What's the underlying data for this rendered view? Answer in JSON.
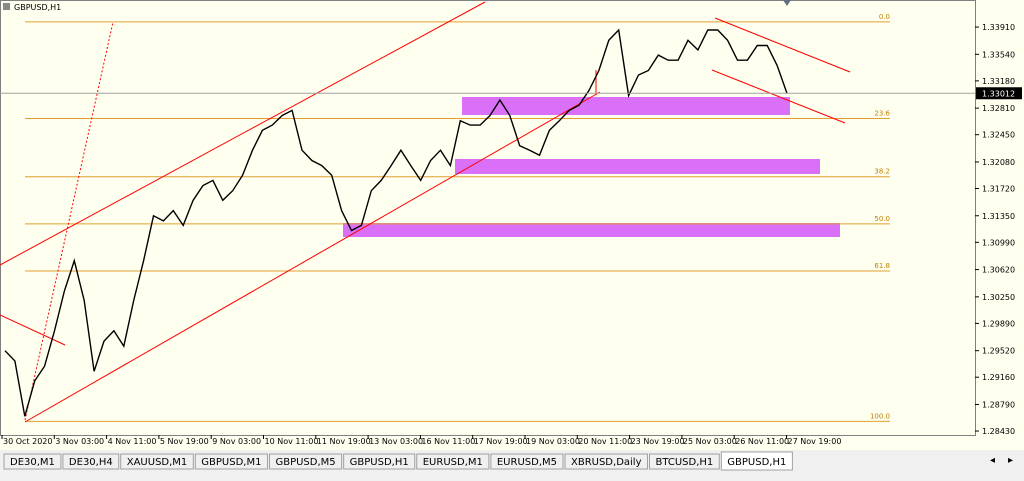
{
  "chart_data": {
    "type": "line",
    "title": "GBPUSD,H1",
    "color": "#000000",
    "values": [
      1.2952,
      1.2938,
      1.2863,
      1.2911,
      1.2931,
      1.2979,
      1.3033,
      1.3074,
      1.302,
      1.2924,
      1.2965,
      1.2979,
      1.2958,
      1.302,
      1.3074,
      1.3135,
      1.3128,
      1.3142,
      1.3122,
      1.3156,
      1.3176,
      1.3183,
      1.3156,
      1.3169,
      1.319,
      1.3224,
      1.3251,
      1.3258,
      1.3271,
      1.3278,
      1.3224,
      1.321,
      1.3203,
      1.319,
      1.3142,
      1.3115,
      1.3122,
      1.3169,
      1.3183,
      1.3203,
      1.3224,
      1.3203,
      1.3183,
      1.321,
      1.3224,
      1.3203,
      1.3264,
      1.3258,
      1.3258,
      1.3271,
      1.3292,
      1.3271,
      1.323,
      1.3224,
      1.3217,
      1.3251,
      1.3264,
      1.3278,
      1.3285,
      1.3305,
      1.3332,
      1.3373,
      1.3387,
      1.3298,
      1.3326,
      1.3332,
      1.3353,
      1.3346,
      1.3346,
      1.3373,
      1.336,
      1.3387,
      1.3387,
      1.3373,
      1.3346,
      1.3346,
      1.3366,
      1.3366,
      1.3339,
      1.3301
    ],
    "ylim": [
      1.28376,
      1.34277
    ],
    "yticks": [
      {
        "value": 1.3391,
        "label": "1.33910"
      },
      {
        "value": 1.3354,
        "label": "1.33540"
      },
      {
        "value": 1.3318,
        "label": "1.33180"
      },
      {
        "value": 1.3281,
        "label": "1.32810"
      },
      {
        "value": 1.3245,
        "label": "1.32450"
      },
      {
        "value": 1.3208,
        "label": "1.32080"
      },
      {
        "value": 1.3172,
        "label": "1.31720"
      },
      {
        "value": 1.3135,
        "label": "1.31350"
      },
      {
        "value": 1.3099,
        "label": "1.30990"
      },
      {
        "value": 1.3062,
        "label": "1.30620"
      },
      {
        "value": 1.3025,
        "label": "1.30250"
      },
      {
        "value": 1.2989,
        "label": "1.29890"
      },
      {
        "value": 1.2952,
        "label": "1.29520"
      },
      {
        "value": 1.2916,
        "label": "1.29160"
      },
      {
        "value": 1.2879,
        "label": "1.28790"
      },
      {
        "value": 1.2843,
        "label": "1.28430"
      }
    ],
    "x_labels": [
      "30 Oct 2020",
      "3 Nov 03:00",
      "4 Nov 11:00",
      "5 Nov 19:00",
      "9 Nov 03:00",
      "10 Nov 11:00",
      "11 Nov 19:00",
      "13 Nov 03:00",
      "16 Nov 11:00",
      "17 Nov 19:00",
      "19 Nov 03:00",
      "20 Nov 11:00",
      "23 Nov 19:00",
      "25 Nov 03:00",
      "26 Nov 11:00",
      "27 Nov 19:00"
    ],
    "current_price": 1.33012,
    "fib_levels": [
      {
        "label": "0.0",
        "price": 1.3398
      },
      {
        "label": "23.6",
        "price": 1.3267
      },
      {
        "label": "38.2",
        "price": 1.3188
      },
      {
        "label": "50.0",
        "price": 1.3124
      },
      {
        "label": "61.8",
        "price": 1.306
      },
      {
        "label": "100.0",
        "price": 1.2856
      }
    ]
  },
  "tabs": [
    "DE30,M1",
    "DE30,H4",
    "XAUUSD,M1",
    "GBPUSD,M1",
    "GBPUSD,M5",
    "GBPUSD,H1",
    "EURUSD,M1",
    "EURUSD,M5",
    "XBRUSD,Daily",
    "BTCUSD,H1",
    "GBPUSD,H1"
  ],
  "active_tab": 10
}
